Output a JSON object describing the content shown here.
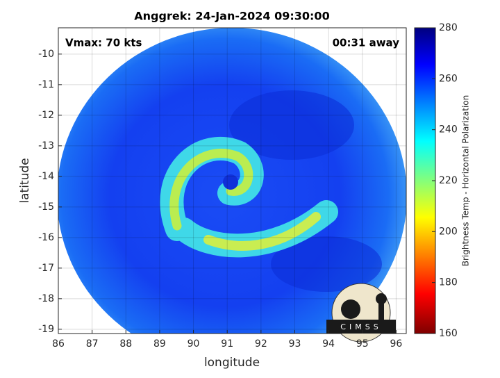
{
  "chart_data": {
    "type": "image",
    "title": "Anggrek: 24-Jan-2024 09:30:00",
    "annotations": [
      "Vmax: 70 kts",
      "00:31 away"
    ],
    "logo_text": "CIMSS",
    "xlabel": "longitude",
    "ylabel": "latitude",
    "xlim": [
      86,
      96.3
    ],
    "xticks": [
      86,
      87,
      88,
      89,
      90,
      91,
      92,
      93,
      94,
      95,
      96
    ],
    "ylim": [
      -19.14,
      -9.14
    ],
    "yticks": [
      -19,
      -18,
      -17,
      -16,
      -15,
      -14,
      -13,
      -12,
      -11,
      -10
    ],
    "grid": true,
    "colorbar": {
      "label": "Brightness Temp - Horizontal Polarization",
      "lim": [
        160,
        280
      ],
      "ticks": [
        160,
        180,
        200,
        220,
        240,
        260,
        280
      ]
    }
  }
}
